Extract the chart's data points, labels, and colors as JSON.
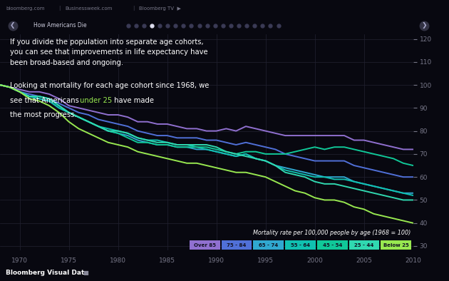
{
  "background_color": "#080810",
  "header_bg": "#111118",
  "nav_bg": "#0d0d18",
  "footer_bg": "#0d0d18",
  "text1": "If you divide the population into separate age cohorts,\nyou can see that improvements in life expectancy have\nbeen broad-based and ongoing.",
  "text2_line1": "Looking at mortality for each age cohort since 1968, we",
  "text2_line2_pre": "see that Americans ",
  "text2_highlight": "under 25",
  "text2_line2_post": " have made",
  "text2_line3": "the most progress.",
  "ylabel_text": "Mortality rate per 100,000 people by age (1968 = 100)",
  "xmin": 1968,
  "xmax": 2010,
  "ymin": 28,
  "ymax": 122,
  "yticks": [
    30,
    40,
    50,
    60,
    70,
    80,
    90,
    100,
    110,
    120
  ],
  "xticks": [
    1970,
    1975,
    1980,
    1985,
    1990,
    1995,
    2000,
    2005,
    2010
  ],
  "grid_color": "#222232",
  "series": {
    "Over 85": {
      "color": "#9070d0",
      "data": [
        [
          1968,
          100
        ],
        [
          1969,
          99
        ],
        [
          1970,
          98
        ],
        [
          1971,
          97
        ],
        [
          1972,
          97
        ],
        [
          1973,
          96
        ],
        [
          1974,
          94
        ],
        [
          1975,
          91
        ],
        [
          1976,
          90
        ],
        [
          1977,
          89
        ],
        [
          1978,
          88
        ],
        [
          1979,
          87
        ],
        [
          1980,
          87
        ],
        [
          1981,
          86
        ],
        [
          1982,
          84
        ],
        [
          1983,
          84
        ],
        [
          1984,
          83
        ],
        [
          1985,
          83
        ],
        [
          1986,
          82
        ],
        [
          1987,
          81
        ],
        [
          1988,
          81
        ],
        [
          1989,
          80
        ],
        [
          1990,
          80
        ],
        [
          1991,
          81
        ],
        [
          1992,
          80
        ],
        [
          1993,
          82
        ],
        [
          1994,
          81
        ],
        [
          1995,
          80
        ],
        [
          1996,
          79
        ],
        [
          1997,
          78
        ],
        [
          1998,
          78
        ],
        [
          1999,
          78
        ],
        [
          2000,
          78
        ],
        [
          2001,
          78
        ],
        [
          2002,
          78
        ],
        [
          2003,
          78
        ],
        [
          2004,
          76
        ],
        [
          2005,
          76
        ],
        [
          2006,
          75
        ],
        [
          2007,
          74
        ],
        [
          2008,
          73
        ],
        [
          2009,
          72
        ],
        [
          2010,
          72
        ]
      ]
    },
    "75 - 84": {
      "color": "#5070d8",
      "data": [
        [
          1968,
          100
        ],
        [
          1969,
          99
        ],
        [
          1970,
          97
        ],
        [
          1971,
          96
        ],
        [
          1972,
          95
        ],
        [
          1973,
          94
        ],
        [
          1974,
          92
        ],
        [
          1975,
          90
        ],
        [
          1976,
          88
        ],
        [
          1977,
          87
        ],
        [
          1978,
          85
        ],
        [
          1979,
          84
        ],
        [
          1980,
          83
        ],
        [
          1981,
          82
        ],
        [
          1982,
          80
        ],
        [
          1983,
          79
        ],
        [
          1984,
          78
        ],
        [
          1985,
          78
        ],
        [
          1986,
          77
        ],
        [
          1987,
          77
        ],
        [
          1988,
          77
        ],
        [
          1989,
          76
        ],
        [
          1990,
          76
        ],
        [
          1991,
          75
        ],
        [
          1992,
          74
        ],
        [
          1993,
          75
        ],
        [
          1994,
          74
        ],
        [
          1995,
          73
        ],
        [
          1996,
          72
        ],
        [
          1997,
          70
        ],
        [
          1998,
          69
        ],
        [
          1999,
          68
        ],
        [
          2000,
          67
        ],
        [
          2001,
          67
        ],
        [
          2002,
          67
        ],
        [
          2003,
          67
        ],
        [
          2004,
          65
        ],
        [
          2005,
          64
        ],
        [
          2006,
          63
        ],
        [
          2007,
          62
        ],
        [
          2008,
          61
        ],
        [
          2009,
          60
        ],
        [
          2010,
          60
        ]
      ]
    },
    "65 - 74": {
      "color": "#30a8d0",
      "data": [
        [
          1968,
          100
        ],
        [
          1969,
          99
        ],
        [
          1970,
          97
        ],
        [
          1971,
          95
        ],
        [
          1972,
          94
        ],
        [
          1973,
          93
        ],
        [
          1974,
          90
        ],
        [
          1975,
          88
        ],
        [
          1976,
          86
        ],
        [
          1977,
          84
        ],
        [
          1978,
          82
        ],
        [
          1979,
          80
        ],
        [
          1980,
          79
        ],
        [
          1981,
          78
        ],
        [
          1982,
          76
        ],
        [
          1983,
          75
        ],
        [
          1984,
          74
        ],
        [
          1985,
          74
        ],
        [
          1986,
          73
        ],
        [
          1987,
          73
        ],
        [
          1988,
          72
        ],
        [
          1989,
          72
        ],
        [
          1990,
          71
        ],
        [
          1991,
          70
        ],
        [
          1992,
          69
        ],
        [
          1993,
          70
        ],
        [
          1994,
          68
        ],
        [
          1995,
          67
        ],
        [
          1996,
          65
        ],
        [
          1997,
          64
        ],
        [
          1998,
          63
        ],
        [
          1999,
          62
        ],
        [
          2000,
          61
        ],
        [
          2001,
          60
        ],
        [
          2002,
          60
        ],
        [
          2003,
          60
        ],
        [
          2004,
          58
        ],
        [
          2005,
          57
        ],
        [
          2006,
          56
        ],
        [
          2007,
          55
        ],
        [
          2008,
          54
        ],
        [
          2009,
          53
        ],
        [
          2010,
          53
        ]
      ]
    },
    "55 - 64": {
      "color": "#10c0b0",
      "data": [
        [
          1968,
          100
        ],
        [
          1969,
          99
        ],
        [
          1970,
          97
        ],
        [
          1971,
          95
        ],
        [
          1972,
          94
        ],
        [
          1973,
          93
        ],
        [
          1974,
          90
        ],
        [
          1975,
          88
        ],
        [
          1976,
          86
        ],
        [
          1977,
          84
        ],
        [
          1978,
          82
        ],
        [
          1979,
          81
        ],
        [
          1980,
          80
        ],
        [
          1981,
          79
        ],
        [
          1982,
          77
        ],
        [
          1983,
          76
        ],
        [
          1984,
          76
        ],
        [
          1985,
          75
        ],
        [
          1986,
          74
        ],
        [
          1987,
          74
        ],
        [
          1988,
          73
        ],
        [
          1989,
          72
        ],
        [
          1990,
          71
        ],
        [
          1991,
          70
        ],
        [
          1992,
          69
        ],
        [
          1993,
          70
        ],
        [
          1994,
          68
        ],
        [
          1995,
          67
        ],
        [
          1996,
          65
        ],
        [
          1997,
          63
        ],
        [
          1998,
          62
        ],
        [
          1999,
          61
        ],
        [
          2000,
          60
        ],
        [
          2001,
          60
        ],
        [
          2002,
          59
        ],
        [
          2003,
          59
        ],
        [
          2004,
          58
        ],
        [
          2005,
          57
        ],
        [
          2006,
          56
        ],
        [
          2007,
          55
        ],
        [
          2008,
          54
        ],
        [
          2009,
          53
        ],
        [
          2010,
          52
        ]
      ]
    },
    "45 - 54": {
      "color": "#10c898",
      "data": [
        [
          1968,
          100
        ],
        [
          1969,
          99
        ],
        [
          1970,
          97
        ],
        [
          1971,
          95
        ],
        [
          1972,
          95
        ],
        [
          1973,
          94
        ],
        [
          1974,
          91
        ],
        [
          1975,
          88
        ],
        [
          1976,
          86
        ],
        [
          1977,
          84
        ],
        [
          1978,
          82
        ],
        [
          1979,
          80
        ],
        [
          1980,
          79
        ],
        [
          1981,
          77
        ],
        [
          1982,
          75
        ],
        [
          1983,
          75
        ],
        [
          1984,
          74
        ],
        [
          1985,
          74
        ],
        [
          1986,
          73
        ],
        [
          1987,
          73
        ],
        [
          1988,
          73
        ],
        [
          1989,
          73
        ],
        [
          1990,
          72
        ],
        [
          1991,
          71
        ],
        [
          1992,
          70
        ],
        [
          1993,
          71
        ],
        [
          1994,
          71
        ],
        [
          1995,
          70
        ],
        [
          1996,
          70
        ],
        [
          1997,
          70
        ],
        [
          1998,
          71
        ],
        [
          1999,
          72
        ],
        [
          2000,
          73
        ],
        [
          2001,
          72
        ],
        [
          2002,
          73
        ],
        [
          2003,
          73
        ],
        [
          2004,
          72
        ],
        [
          2005,
          71
        ],
        [
          2006,
          70
        ],
        [
          2007,
          69
        ],
        [
          2008,
          68
        ],
        [
          2009,
          66
        ],
        [
          2010,
          65
        ]
      ]
    },
    "25 - 44": {
      "color": "#30d8b0",
      "data": [
        [
          1968,
          100
        ],
        [
          1969,
          99
        ],
        [
          1970,
          97
        ],
        [
          1971,
          95
        ],
        [
          1972,
          95
        ],
        [
          1973,
          94
        ],
        [
          1974,
          91
        ],
        [
          1975,
          88
        ],
        [
          1976,
          86
        ],
        [
          1977,
          84
        ],
        [
          1978,
          82
        ],
        [
          1979,
          80
        ],
        [
          1980,
          80
        ],
        [
          1981,
          79
        ],
        [
          1982,
          77
        ],
        [
          1983,
          76
        ],
        [
          1984,
          75
        ],
        [
          1985,
          75
        ],
        [
          1986,
          74
        ],
        [
          1987,
          74
        ],
        [
          1988,
          74
        ],
        [
          1989,
          74
        ],
        [
          1990,
          73
        ],
        [
          1991,
          71
        ],
        [
          1992,
          70
        ],
        [
          1993,
          69
        ],
        [
          1994,
          68
        ],
        [
          1995,
          67
        ],
        [
          1996,
          65
        ],
        [
          1997,
          62
        ],
        [
          1998,
          61
        ],
        [
          1999,
          60
        ],
        [
          2000,
          58
        ],
        [
          2001,
          57
        ],
        [
          2002,
          57
        ],
        [
          2003,
          56
        ],
        [
          2004,
          55
        ],
        [
          2005,
          54
        ],
        [
          2006,
          53
        ],
        [
          2007,
          52
        ],
        [
          2008,
          51
        ],
        [
          2009,
          50
        ],
        [
          2010,
          50
        ]
      ]
    },
    "Below 25": {
      "color": "#98e850",
      "data": [
        [
          1968,
          100
        ],
        [
          1969,
          99
        ],
        [
          1970,
          97
        ],
        [
          1971,
          94
        ],
        [
          1972,
          93
        ],
        [
          1973,
          91
        ],
        [
          1974,
          88
        ],
        [
          1975,
          84
        ],
        [
          1976,
          81
        ],
        [
          1977,
          79
        ],
        [
          1978,
          77
        ],
        [
          1979,
          75
        ],
        [
          1980,
          74
        ],
        [
          1981,
          73
        ],
        [
          1982,
          71
        ],
        [
          1983,
          70
        ],
        [
          1984,
          69
        ],
        [
          1985,
          68
        ],
        [
          1986,
          67
        ],
        [
          1987,
          66
        ],
        [
          1988,
          66
        ],
        [
          1989,
          65
        ],
        [
          1990,
          64
        ],
        [
          1991,
          63
        ],
        [
          1992,
          62
        ],
        [
          1993,
          62
        ],
        [
          1994,
          61
        ],
        [
          1995,
          60
        ],
        [
          1996,
          58
        ],
        [
          1997,
          56
        ],
        [
          1998,
          54
        ],
        [
          1999,
          53
        ],
        [
          2000,
          51
        ],
        [
          2001,
          50
        ],
        [
          2002,
          50
        ],
        [
          2003,
          49
        ],
        [
          2004,
          47
        ],
        [
          2005,
          46
        ],
        [
          2006,
          44
        ],
        [
          2007,
          43
        ],
        [
          2008,
          42
        ],
        [
          2009,
          41
        ],
        [
          2010,
          40
        ]
      ]
    }
  },
  "legend_labels": [
    "Over 85",
    "75 - 84",
    "65 - 74",
    "55 - 64",
    "45 - 54",
    "25 - 44",
    "Below 25"
  ],
  "legend_colors": [
    "#9070d0",
    "#5070d8",
    "#30a8d0",
    "#10c0b0",
    "#10c898",
    "#30d8b0",
    "#98e850"
  ],
  "bloomberg_label": "Bloomberg Visual Data"
}
